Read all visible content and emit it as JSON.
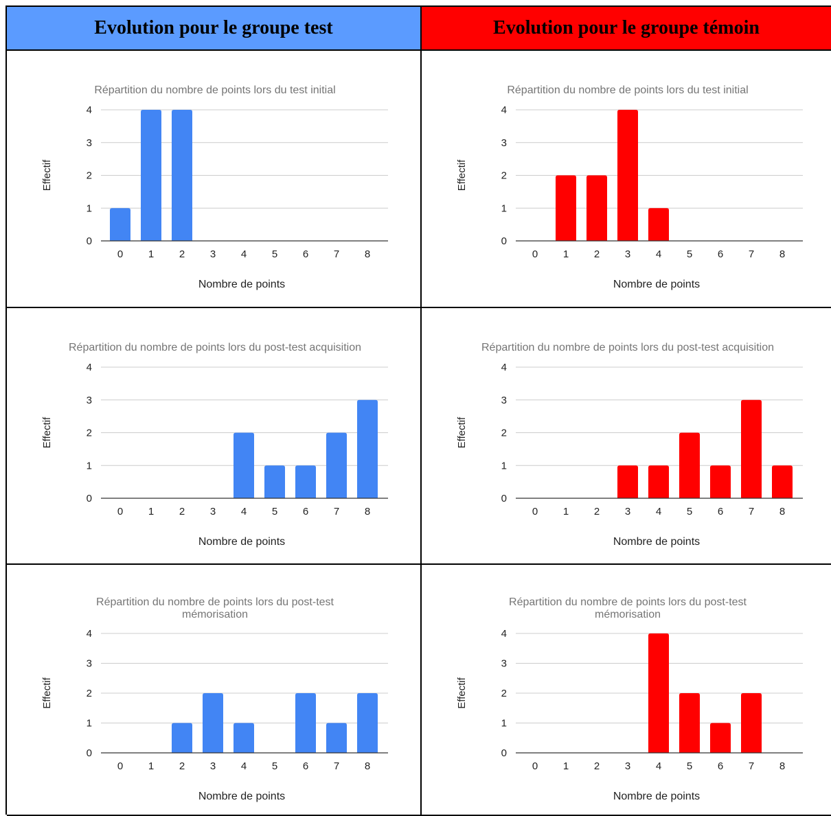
{
  "headers": {
    "test": {
      "label": "Evolution pour le groupe test",
      "color": "#5b9bff"
    },
    "temoin": {
      "label": "Evolution pour le groupe témoin",
      "color": "#ff0000"
    }
  },
  "colors": {
    "test_bars": "#4285f4",
    "temoin_bars": "#ff0000",
    "title_text": "#757575",
    "grid": "#cccccc",
    "axis": "#333333"
  },
  "chart_data": [
    {
      "id": "test-initial",
      "type": "bar",
      "title": [
        "Répartition du nombre de points lors du test initial"
      ],
      "xlabel": "Nombre de points",
      "ylabel": "Effectif",
      "categories": [
        "0",
        "1",
        "2",
        "3",
        "4",
        "5",
        "6",
        "7",
        "8"
      ],
      "values": [
        1,
        4,
        4,
        0,
        0,
        0,
        0,
        0,
        0
      ],
      "ylim": [
        0,
        4
      ],
      "yticks": [
        "0",
        "1",
        "2",
        "3",
        "4"
      ],
      "grid": true,
      "color": "#4285f4"
    },
    {
      "id": "temoin-initial",
      "type": "bar",
      "title": [
        "Répartition du nombre de points lors du test initial"
      ],
      "xlabel": "Nombre de points",
      "ylabel": "Effectif",
      "categories": [
        "0",
        "1",
        "2",
        "3",
        "4",
        "5",
        "6",
        "7",
        "8"
      ],
      "values": [
        0,
        2,
        2,
        4,
        1,
        0,
        0,
        0,
        0
      ],
      "ylim": [
        0,
        4
      ],
      "yticks": [
        "0",
        "1",
        "2",
        "3",
        "4"
      ],
      "grid": true,
      "color": "#ff0000"
    },
    {
      "id": "test-acquisition",
      "type": "bar",
      "title": [
        "Répartition du nombre de points lors du post-test acquisition"
      ],
      "xlabel": "Nombre de points",
      "ylabel": "Effectif",
      "categories": [
        "0",
        "1",
        "2",
        "3",
        "4",
        "5",
        "6",
        "7",
        "8"
      ],
      "values": [
        0,
        0,
        0,
        0,
        2,
        1,
        1,
        2,
        3
      ],
      "ylim": [
        0,
        4
      ],
      "yticks": [
        "0",
        "1",
        "2",
        "3",
        "4"
      ],
      "grid": true,
      "color": "#4285f4"
    },
    {
      "id": "temoin-acquisition",
      "type": "bar",
      "title": [
        "Répartition du nombre de points lors du post-test acquisition"
      ],
      "xlabel": "Nombre de points",
      "ylabel": "Effectif",
      "categories": [
        "0",
        "1",
        "2",
        "3",
        "4",
        "5",
        "6",
        "7",
        "8"
      ],
      "values": [
        0,
        0,
        0,
        1,
        1,
        2,
        1,
        3,
        1
      ],
      "ylim": [
        0,
        4
      ],
      "yticks": [
        "0",
        "1",
        "2",
        "3",
        "4"
      ],
      "grid": true,
      "color": "#ff0000"
    },
    {
      "id": "test-memorisation",
      "type": "bar",
      "title": [
        "Répartition du nombre de points lors du post-test",
        "mémorisation"
      ],
      "xlabel": "Nombre de points",
      "ylabel": "Effectif",
      "categories": [
        "0",
        "1",
        "2",
        "3",
        "4",
        "5",
        "6",
        "7",
        "8"
      ],
      "values": [
        0,
        0,
        1,
        2,
        1,
        0,
        2,
        1,
        2
      ],
      "ylim": [
        0,
        4
      ],
      "yticks": [
        "0",
        "1",
        "2",
        "3",
        "4"
      ],
      "grid": true,
      "color": "#4285f4"
    },
    {
      "id": "temoin-memorisation",
      "type": "bar",
      "title": [
        "Répartition du nombre de points lors du post-test",
        "mémorisation"
      ],
      "xlabel": "Nombre de points",
      "ylabel": "Effectif",
      "categories": [
        "0",
        "1",
        "2",
        "3",
        "4",
        "5",
        "6",
        "7",
        "8"
      ],
      "values": [
        0,
        0,
        0,
        0,
        4,
        2,
        1,
        2,
        0
      ],
      "ylim": [
        0,
        4
      ],
      "yticks": [
        "0",
        "1",
        "2",
        "3",
        "4"
      ],
      "grid": true,
      "color": "#ff0000"
    }
  ]
}
